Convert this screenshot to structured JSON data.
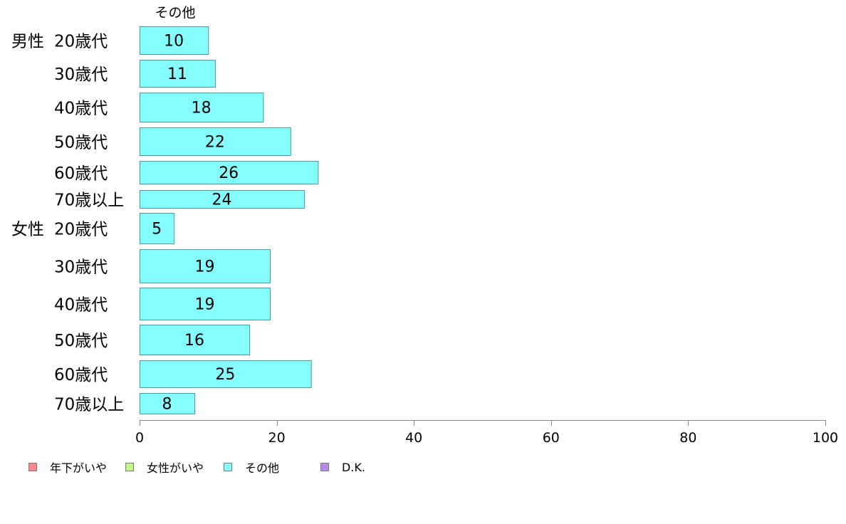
{
  "chart_data": {
    "type": "bar",
    "orientation": "horizontal",
    "series_label": "その他",
    "groups": [
      "男性",
      "女性"
    ],
    "categories": [
      "20歳代",
      "30歳代",
      "40歳代",
      "50歳代",
      "60歳代",
      "70歳以上",
      "20歳代",
      "30歳代",
      "40歳代",
      "50歳代",
      "60歳代",
      "70歳以上"
    ],
    "category_groups": [
      "男性",
      "",
      "",
      "",
      "",
      "",
      "女性",
      "",
      "",
      "",
      "",
      ""
    ],
    "series": [
      {
        "name": "その他",
        "values": [
          10,
          11,
          18,
          22,
          26,
          24,
          5,
          19,
          19,
          16,
          25,
          8
        ]
      }
    ],
    "data_labels": [
      "10",
      "11",
      "18",
      "22",
      "26",
      "24",
      "5",
      "19",
      "19",
      "16",
      "25",
      "8"
    ],
    "xlim": [
      0,
      100
    ],
    "xticks": [
      0,
      20,
      40,
      60,
      80,
      100
    ],
    "xtick_labels": [
      "0",
      "20",
      "40",
      "60",
      "80",
      "100"
    ],
    "grid": false,
    "legend_position": "bottom-left",
    "legend": [
      {
        "label": "年下がいや",
        "color": "#f98b87"
      },
      {
        "label": "女性がいや",
        "color": "#c4fb86"
      },
      {
        "label": "その他",
        "color": "#85fdfd"
      },
      {
        "label": "D.K.",
        "color": "#b68af5"
      }
    ],
    "bar_color": "#85fdfd",
    "bar_border_color": "#4a9aa0"
  }
}
